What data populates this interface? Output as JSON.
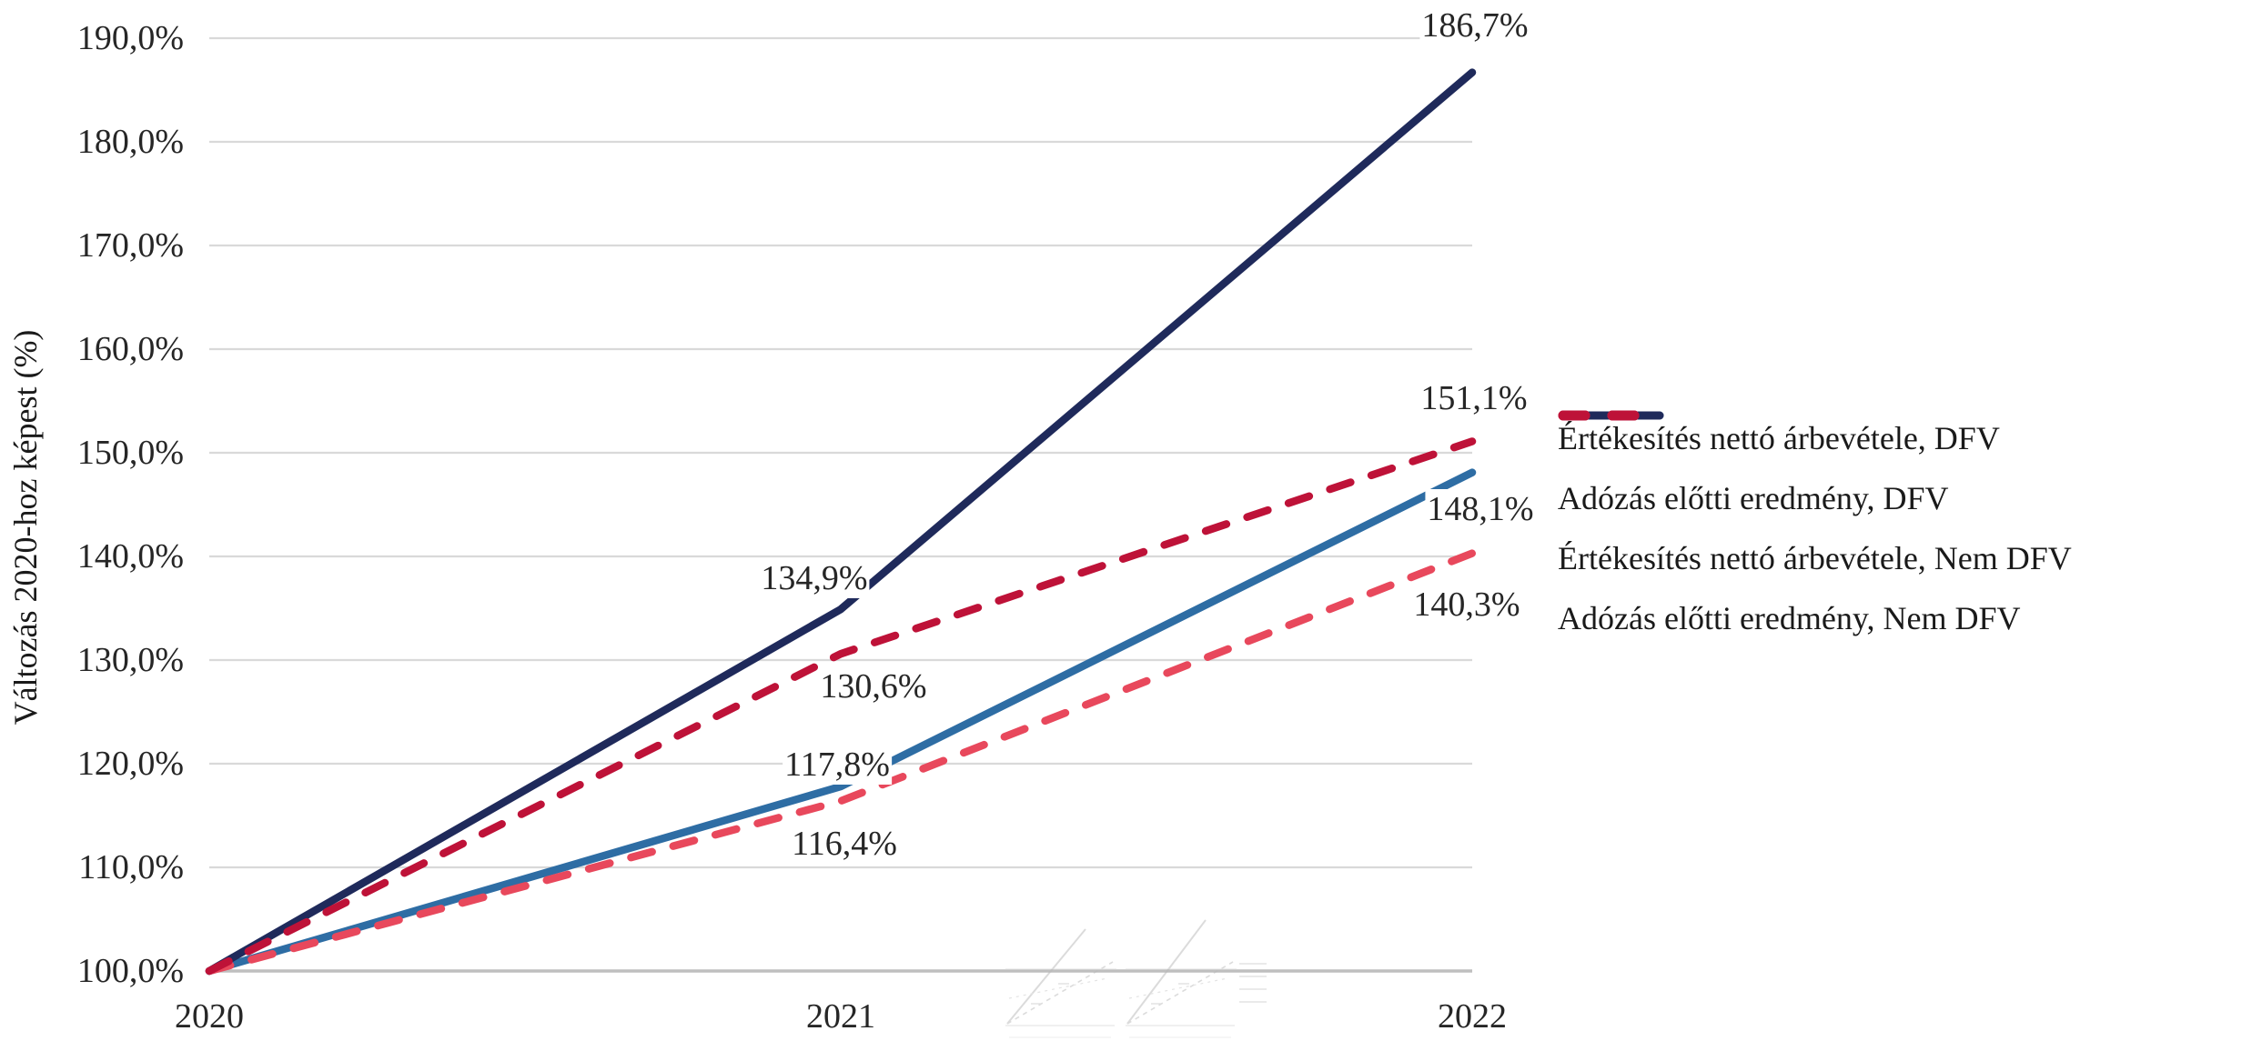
{
  "chart_data": {
    "type": "line",
    "x_labels": [
      "2020",
      "2021",
      "2022"
    ],
    "ylabel": "Változás 2020-hoz képest (%)",
    "ylim": [
      100,
      190
    ],
    "ytick_step": 10,
    "ytick_labels": [
      "100,0%",
      "110,0%",
      "120,0%",
      "130,0%",
      "140,0%",
      "150,0%",
      "160,0%",
      "170,0%",
      "180,0%",
      "190,0%"
    ],
    "grid": true,
    "grid_color": "#D9D9D9",
    "axis_line_color": "#BFBFBF",
    "text_color": "#262626",
    "legend_position": "right",
    "decimal_style": "comma",
    "series": [
      {
        "name": "Értékesítés nettó árbevétele, DFV",
        "values": [
          100.0,
          117.8,
          148.1
        ],
        "color": "#2E6DA4",
        "dashed": false,
        "point_labels": [
          {
            "i": 1,
            "text": "117,8%",
            "dx": -4,
            "dy": -24
          },
          {
            "i": 2,
            "text": "148,1%",
            "dx": 9,
            "dy": 40
          }
        ]
      },
      {
        "name": "Adózás előtti eredmény, DFV",
        "values": [
          100.0,
          134.9,
          186.7
        ],
        "color": "#1F2A5B",
        "dashed": false,
        "point_labels": [
          {
            "i": 1,
            "text": "134,9%",
            "dx": -29,
            "dy": -34
          },
          {
            "i": 2,
            "text": "186,7%",
            "dx": 3,
            "dy": -52
          }
        ]
      },
      {
        "name": "Értékesítés nettó árbevétele, Nem DFV",
        "values": [
          100.0,
          116.4,
          140.3
        ],
        "color": "#E8485C",
        "dashed": true,
        "point_labels": [
          {
            "i": 1,
            "text": "116,4%",
            "dx": 4,
            "dy": 47
          },
          {
            "i": 2,
            "text": "140,3%",
            "dx": -6,
            "dy": 56
          }
        ]
      },
      {
        "name": "Adózás előtti eredmény, Nem DFV",
        "values": [
          100.0,
          130.6,
          151.1
        ],
        "color": "#BE1238",
        "dashed": true,
        "point_labels": [
          {
            "i": 1,
            "text": "130,6%",
            "dx": 36,
            "dy": 36
          },
          {
            "i": 2,
            "text": "151,1%",
            "dx": 2,
            "dy": -47
          }
        ]
      }
    ]
  }
}
